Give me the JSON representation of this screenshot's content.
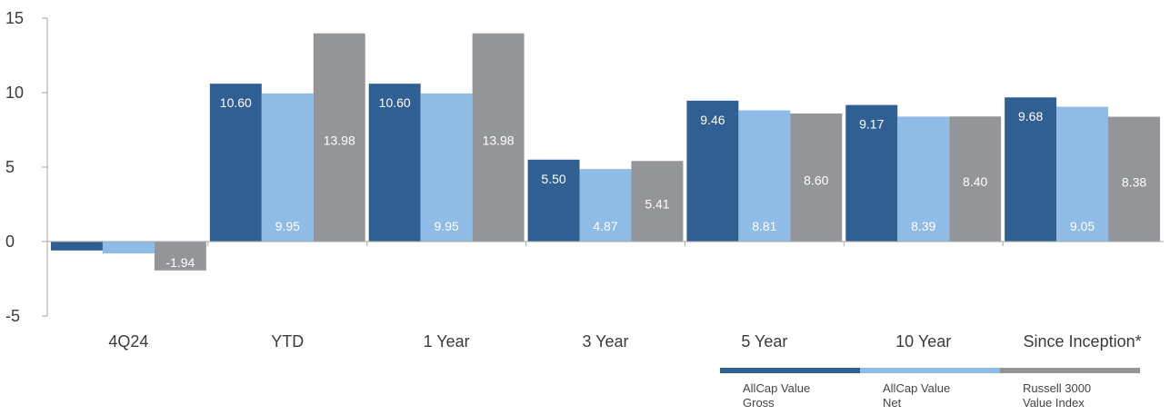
{
  "chart_data": {
    "type": "bar",
    "categories": [
      "4Q24",
      "YTD",
      "1 Year",
      "3 Year",
      "5 Year",
      "10 Year",
      "Since Inception*"
    ],
    "series": [
      {
        "name": "AllCap Value Gross",
        "color": "#2f5f93",
        "values": [
          -0.6,
          10.6,
          10.6,
          5.5,
          9.46,
          9.17,
          9.68
        ],
        "labels": [
          "",
          "10.60",
          "10.60",
          "5.50",
          "9.46",
          "9.17",
          "9.68"
        ]
      },
      {
        "name": "AllCap Value Net",
        "color": "#8ebce6",
        "values": [
          -0.8,
          9.95,
          9.95,
          4.87,
          8.81,
          8.39,
          9.05
        ],
        "labels": [
          "",
          "9.95",
          "9.95",
          "4.87",
          "8.81",
          "8.39",
          "9.05"
        ]
      },
      {
        "name": "Russell 3000 Value Index",
        "color": "#939598",
        "values": [
          -1.94,
          13.98,
          13.98,
          5.41,
          8.6,
          8.4,
          8.38
        ],
        "labels": [
          "-1.94",
          "13.98",
          "13.98",
          "5.41",
          "8.60",
          "8.40",
          "8.38"
        ]
      }
    ],
    "legend_lines": [
      [
        "AllCap Value",
        "Gross"
      ],
      [
        "AllCap Value",
        "Net"
      ],
      [
        "Russell 3000",
        "Value Index"
      ]
    ],
    "ylim": [
      -5,
      15
    ],
    "yticks": [
      "15",
      "10",
      "5",
      "0",
      "-5"
    ],
    "ytick_values": [
      15,
      10,
      5,
      0,
      -5
    ],
    "legend_position": "bottom-right"
  }
}
